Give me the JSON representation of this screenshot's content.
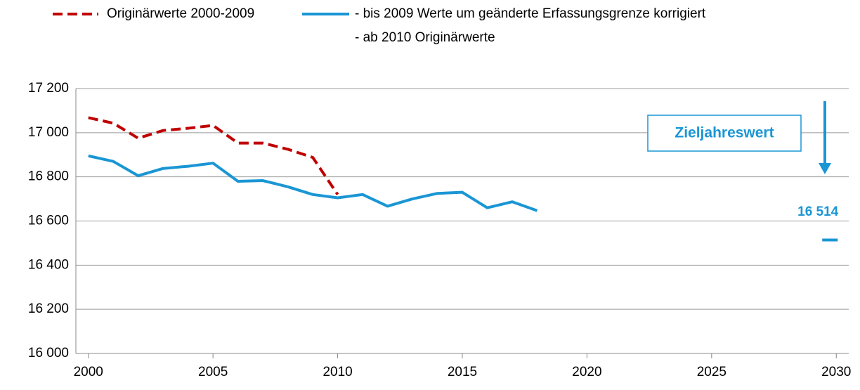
{
  "chart_data": {
    "type": "line",
    "series": [
      {
        "name": "Originärwerte 2000-2009",
        "color": "#c00000",
        "dash": true,
        "x": [
          2000,
          2001,
          2002,
          2003,
          2004,
          2005,
          2006,
          2007,
          2008,
          2009,
          2010
        ],
        "values": [
          17068,
          17043,
          16975,
          17010,
          17020,
          17033,
          16953,
          16953,
          16925,
          16888,
          16720
        ]
      },
      {
        "name": "- bis 2009 Werte um geänderte Erfassungsgrenze korrigiert",
        "color": "#1a96d4",
        "dash": false,
        "x": [
          2000,
          2001,
          2002,
          2003,
          2004,
          2005,
          2006,
          2007,
          2008,
          2009,
          2010,
          2011,
          2012,
          2013,
          2014,
          2015,
          2016,
          2017,
          2018
        ],
        "values": [
          16895,
          16870,
          16805,
          16838,
          16848,
          16862,
          16780,
          16783,
          16755,
          16720,
          16705,
          16720,
          16667,
          16700,
          16725,
          16730,
          16660,
          16687,
          16647
        ]
      }
    ],
    "legend_note": "- ab 2010 Originärwerte",
    "target": {
      "x": 2030,
      "value": 16514,
      "label": "16 514",
      "annotation": "Zieljahreswert",
      "color": "#1a96d4"
    },
    "xlim": [
      1999.5,
      2030.5
    ],
    "xticks": [
      2000,
      2005,
      2010,
      2015,
      2020,
      2025,
      2030
    ],
    "ylim": [
      16000,
      17200
    ],
    "yticks": [
      {
        "value": 16000,
        "label": "16 000"
      },
      {
        "value": 16200,
        "label": "16 200"
      },
      {
        "value": 16400,
        "label": "16 400"
      },
      {
        "value": 16600,
        "label": "16 600"
      },
      {
        "value": 16800,
        "label": "16 800"
      },
      {
        "value": 17000,
        "label": "17 000"
      },
      {
        "value": 17200,
        "label": "17 200"
      }
    ],
    "grid": true
  }
}
